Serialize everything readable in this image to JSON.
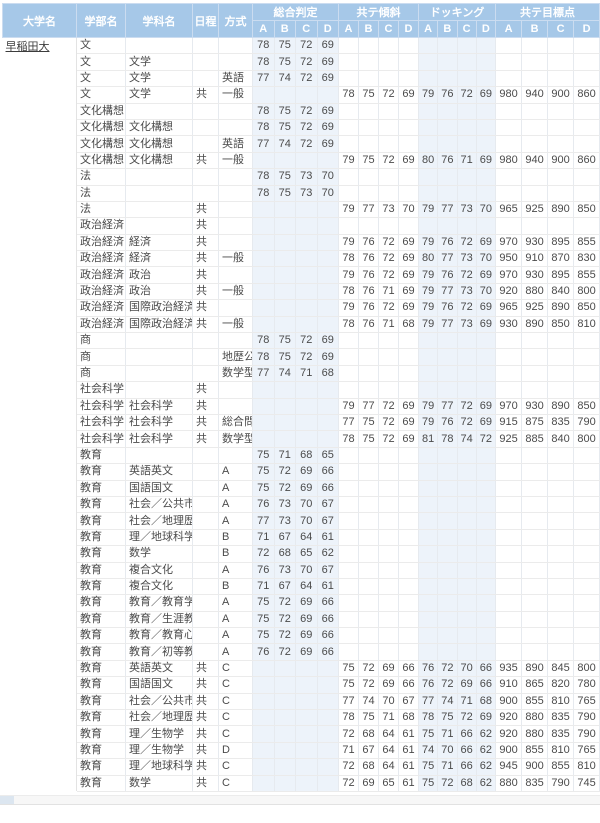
{
  "colors": {
    "header_bg": "#a6c8e8",
    "column_tint": "#edf3fa",
    "header_text": "#ffffff"
  },
  "table": {
    "university": "早稲田大",
    "columns": [
      {
        "key": "university",
        "label": "大学名"
      },
      {
        "key": "faculty",
        "label": "学部名"
      },
      {
        "key": "department",
        "label": "学科名"
      },
      {
        "key": "schedule",
        "label": "日程"
      },
      {
        "key": "method",
        "label": "方式"
      }
    ],
    "groups": [
      {
        "key": "sogo",
        "label": "総合判定",
        "sub": [
          "A",
          "B",
          "C",
          "D"
        ]
      },
      {
        "key": "keisha",
        "label": "共テ傾斜",
        "sub": [
          "A",
          "B",
          "C",
          "D"
        ]
      },
      {
        "key": "docking",
        "label": "ドッキング",
        "sub": [
          "A",
          "B",
          "C",
          "D"
        ]
      },
      {
        "key": "mokuhyo",
        "label": "共テ目標点",
        "sub": [
          "A",
          "B",
          "C",
          "D"
        ]
      }
    ],
    "tinted_groups": [
      "sogo",
      "docking"
    ],
    "rows": [
      {
        "faculty": "文",
        "department": "",
        "schedule": "",
        "method": "",
        "sogo": [
          "78",
          "75",
          "72",
          "69"
        ],
        "keisha": [],
        "docking": [],
        "mokuhyo": []
      },
      {
        "faculty": "文",
        "department": "文学",
        "schedule": "",
        "method": "",
        "sogo": [
          "78",
          "75",
          "72",
          "69"
        ],
        "keisha": [],
        "docking": [],
        "mokuhyo": []
      },
      {
        "faculty": "文",
        "department": "文学",
        "schedule": "",
        "method": "英語",
        "sogo": [
          "77",
          "74",
          "72",
          "69"
        ],
        "keisha": [],
        "docking": [],
        "mokuhyo": []
      },
      {
        "faculty": "文",
        "department": "文学",
        "schedule": "共",
        "method": "一般",
        "sogo": [],
        "keisha": [
          "78",
          "75",
          "72",
          "69"
        ],
        "docking": [
          "79",
          "76",
          "72",
          "69"
        ],
        "mokuhyo": [
          "980",
          "940",
          "900",
          "860"
        ]
      },
      {
        "faculty": "文化構想",
        "department": "",
        "schedule": "",
        "method": "",
        "sogo": [
          "78",
          "75",
          "72",
          "69"
        ],
        "keisha": [],
        "docking": [],
        "mokuhyo": []
      },
      {
        "faculty": "文化構想",
        "department": "文化構想",
        "schedule": "",
        "method": "",
        "sogo": [
          "78",
          "75",
          "72",
          "69"
        ],
        "keisha": [],
        "docking": [],
        "mokuhyo": []
      },
      {
        "faculty": "文化構想",
        "department": "文化構想",
        "schedule": "",
        "method": "英語",
        "sogo": [
          "77",
          "74",
          "72",
          "69"
        ],
        "keisha": [],
        "docking": [],
        "mokuhyo": []
      },
      {
        "faculty": "文化構想",
        "department": "文化構想",
        "schedule": "共",
        "method": "一般",
        "sogo": [],
        "keisha": [
          "79",
          "75",
          "72",
          "69"
        ],
        "docking": [
          "80",
          "76",
          "71",
          "69"
        ],
        "mokuhyo": [
          "980",
          "940",
          "900",
          "860"
        ]
      },
      {
        "faculty": "法",
        "department": "",
        "schedule": "",
        "method": "",
        "sogo": [
          "78",
          "75",
          "73",
          "70"
        ],
        "keisha": [],
        "docking": [],
        "mokuhyo": []
      },
      {
        "faculty": "法",
        "department": "",
        "schedule": "",
        "method": "",
        "sogo": [
          "78",
          "75",
          "73",
          "70"
        ],
        "keisha": [],
        "docking": [],
        "mokuhyo": []
      },
      {
        "faculty": "法",
        "department": "",
        "schedule": "共",
        "method": "",
        "sogo": [],
        "keisha": [
          "79",
          "77",
          "73",
          "70"
        ],
        "docking": [
          "79",
          "77",
          "73",
          "70"
        ],
        "mokuhyo": [
          "965",
          "925",
          "890",
          "850"
        ]
      },
      {
        "faculty": "政治経済",
        "department": "",
        "schedule": "共",
        "method": "",
        "sogo": [],
        "keisha": [],
        "docking": [],
        "mokuhyo": []
      },
      {
        "faculty": "政治経済",
        "department": "経済",
        "schedule": "共",
        "method": "",
        "sogo": [],
        "keisha": [
          "79",
          "76",
          "72",
          "69"
        ],
        "docking": [
          "79",
          "76",
          "72",
          "69"
        ],
        "mokuhyo": [
          "970",
          "930",
          "895",
          "855"
        ]
      },
      {
        "faculty": "政治経済",
        "department": "経済",
        "schedule": "共",
        "method": "一般",
        "sogo": [],
        "keisha": [
          "78",
          "76",
          "72",
          "69"
        ],
        "docking": [
          "80",
          "77",
          "73",
          "70"
        ],
        "mokuhyo": [
          "950",
          "910",
          "870",
          "830"
        ]
      },
      {
        "faculty": "政治経済",
        "department": "政治",
        "schedule": "共",
        "method": "",
        "sogo": [],
        "keisha": [
          "79",
          "76",
          "72",
          "69"
        ],
        "docking": [
          "79",
          "76",
          "72",
          "69"
        ],
        "mokuhyo": [
          "970",
          "930",
          "895",
          "855"
        ]
      },
      {
        "faculty": "政治経済",
        "department": "政治",
        "schedule": "共",
        "method": "一般",
        "sogo": [],
        "keisha": [
          "78",
          "76",
          "71",
          "69"
        ],
        "docking": [
          "79",
          "77",
          "73",
          "70"
        ],
        "mokuhyo": [
          "920",
          "880",
          "840",
          "800"
        ]
      },
      {
        "faculty": "政治経済",
        "department": "国際政治経済",
        "schedule": "共",
        "method": "",
        "sogo": [],
        "keisha": [
          "79",
          "76",
          "72",
          "69"
        ],
        "docking": [
          "79",
          "76",
          "72",
          "69"
        ],
        "mokuhyo": [
          "965",
          "925",
          "890",
          "850"
        ]
      },
      {
        "faculty": "政治経済",
        "department": "国際政治経済",
        "schedule": "共",
        "method": "一般",
        "sogo": [],
        "keisha": [
          "78",
          "76",
          "71",
          "68"
        ],
        "docking": [
          "79",
          "77",
          "73",
          "69"
        ],
        "mokuhyo": [
          "930",
          "890",
          "850",
          "810"
        ]
      },
      {
        "faculty": "商",
        "department": "",
        "schedule": "",
        "method": "",
        "sogo": [
          "78",
          "75",
          "72",
          "69"
        ],
        "keisha": [],
        "docking": [],
        "mokuhyo": []
      },
      {
        "faculty": "商",
        "department": "",
        "schedule": "",
        "method": "地歴公",
        "sogo": [
          "78",
          "75",
          "72",
          "69"
        ],
        "keisha": [],
        "docking": [],
        "mokuhyo": []
      },
      {
        "faculty": "商",
        "department": "",
        "schedule": "",
        "method": "数学型",
        "sogo": [
          "77",
          "74",
          "71",
          "68"
        ],
        "keisha": [],
        "docking": [],
        "mokuhyo": []
      },
      {
        "faculty": "社会科学",
        "department": "",
        "schedule": "共",
        "method": "",
        "sogo": [],
        "keisha": [],
        "docking": [],
        "mokuhyo": []
      },
      {
        "faculty": "社会科学",
        "department": "社会科学",
        "schedule": "共",
        "method": "",
        "sogo": [],
        "keisha": [
          "79",
          "77",
          "72",
          "69"
        ],
        "docking": [
          "79",
          "77",
          "72",
          "69"
        ],
        "mokuhyo": [
          "970",
          "930",
          "890",
          "850"
        ]
      },
      {
        "faculty": "社会科学",
        "department": "社会科学",
        "schedule": "共",
        "method": "総合問",
        "sogo": [],
        "keisha": [
          "77",
          "75",
          "72",
          "69"
        ],
        "docking": [
          "79",
          "76",
          "72",
          "69"
        ],
        "mokuhyo": [
          "915",
          "875",
          "835",
          "790"
        ]
      },
      {
        "faculty": "社会科学",
        "department": "社会科学",
        "schedule": "共",
        "method": "数学型",
        "sogo": [],
        "keisha": [
          "78",
          "75",
          "72",
          "69"
        ],
        "docking": [
          "81",
          "78",
          "74",
          "72"
        ],
        "mokuhyo": [
          "925",
          "885",
          "840",
          "800"
        ]
      },
      {
        "faculty": "教育",
        "department": "",
        "schedule": "",
        "method": "",
        "sogo": [
          "75",
          "71",
          "68",
          "65"
        ],
        "keisha": [],
        "docking": [],
        "mokuhyo": []
      },
      {
        "faculty": "教育",
        "department": "英語英文",
        "schedule": "",
        "method": "A",
        "sogo": [
          "75",
          "72",
          "69",
          "66"
        ],
        "keisha": [],
        "docking": [],
        "mokuhyo": []
      },
      {
        "faculty": "教育",
        "department": "国語国文",
        "schedule": "",
        "method": "A",
        "sogo": [
          "75",
          "72",
          "69",
          "66"
        ],
        "keisha": [],
        "docking": [],
        "mokuhyo": []
      },
      {
        "faculty": "教育",
        "department": "社会／公共市",
        "schedule": "",
        "method": "A",
        "sogo": [
          "76",
          "73",
          "70",
          "67"
        ],
        "keisha": [],
        "docking": [],
        "mokuhyo": []
      },
      {
        "faculty": "教育",
        "department": "社会／地理歴",
        "schedule": "",
        "method": "A",
        "sogo": [
          "77",
          "73",
          "70",
          "67"
        ],
        "keisha": [],
        "docking": [],
        "mokuhyo": []
      },
      {
        "faculty": "教育",
        "department": "理／地球科学",
        "schedule": "",
        "method": "B",
        "sogo": [
          "71",
          "67",
          "64",
          "61"
        ],
        "keisha": [],
        "docking": [],
        "mokuhyo": []
      },
      {
        "faculty": "教育",
        "department": "数学",
        "schedule": "",
        "method": "B",
        "sogo": [
          "72",
          "68",
          "65",
          "62"
        ],
        "keisha": [],
        "docking": [],
        "mokuhyo": []
      },
      {
        "faculty": "教育",
        "department": "複合文化",
        "schedule": "",
        "method": "A",
        "sogo": [
          "76",
          "73",
          "70",
          "67"
        ],
        "keisha": [],
        "docking": [],
        "mokuhyo": []
      },
      {
        "faculty": "教育",
        "department": "複合文化",
        "schedule": "",
        "method": "B",
        "sogo": [
          "71",
          "67",
          "64",
          "61"
        ],
        "keisha": [],
        "docking": [],
        "mokuhyo": []
      },
      {
        "faculty": "教育",
        "department": "教育／教育学",
        "schedule": "",
        "method": "A",
        "sogo": [
          "75",
          "72",
          "69",
          "66"
        ],
        "keisha": [],
        "docking": [],
        "mokuhyo": []
      },
      {
        "faculty": "教育",
        "department": "教育／生涯教",
        "schedule": "",
        "method": "A",
        "sogo": [
          "75",
          "72",
          "69",
          "66"
        ],
        "keisha": [],
        "docking": [],
        "mokuhyo": []
      },
      {
        "faculty": "教育",
        "department": "教育／教育心",
        "schedule": "",
        "method": "A",
        "sogo": [
          "75",
          "72",
          "69",
          "66"
        ],
        "keisha": [],
        "docking": [],
        "mokuhyo": []
      },
      {
        "faculty": "教育",
        "department": "教育／初等教",
        "schedule": "",
        "method": "A",
        "sogo": [
          "76",
          "72",
          "69",
          "66"
        ],
        "keisha": [],
        "docking": [],
        "mokuhyo": []
      },
      {
        "faculty": "教育",
        "department": "英語英文",
        "schedule": "共",
        "method": "C",
        "sogo": [],
        "keisha": [
          "75",
          "72",
          "69",
          "66"
        ],
        "docking": [
          "76",
          "72",
          "70",
          "66"
        ],
        "mokuhyo": [
          "935",
          "890",
          "845",
          "800"
        ]
      },
      {
        "faculty": "教育",
        "department": "国語国文",
        "schedule": "共",
        "method": "C",
        "sogo": [],
        "keisha": [
          "75",
          "72",
          "69",
          "66"
        ],
        "docking": [
          "76",
          "72",
          "69",
          "66"
        ],
        "mokuhyo": [
          "910",
          "865",
          "820",
          "780"
        ]
      },
      {
        "faculty": "教育",
        "department": "社会／公共市",
        "schedule": "共",
        "method": "C",
        "sogo": [],
        "keisha": [
          "77",
          "74",
          "70",
          "67"
        ],
        "docking": [
          "77",
          "74",
          "71",
          "68"
        ],
        "mokuhyo": [
          "900",
          "855",
          "810",
          "765"
        ]
      },
      {
        "faculty": "教育",
        "department": "社会／地理歴",
        "schedule": "共",
        "method": "C",
        "sogo": [],
        "keisha": [
          "78",
          "75",
          "71",
          "68"
        ],
        "docking": [
          "78",
          "75",
          "72",
          "69"
        ],
        "mokuhyo": [
          "920",
          "880",
          "835",
          "790"
        ]
      },
      {
        "faculty": "教育",
        "department": "理／生物学",
        "schedule": "共",
        "method": "C",
        "sogo": [],
        "keisha": [
          "72",
          "68",
          "64",
          "61"
        ],
        "docking": [
          "75",
          "71",
          "66",
          "62"
        ],
        "mokuhyo": [
          "920",
          "880",
          "835",
          "790"
        ]
      },
      {
        "faculty": "教育",
        "department": "理／生物学",
        "schedule": "共",
        "method": "D",
        "sogo": [],
        "keisha": [
          "71",
          "67",
          "64",
          "61"
        ],
        "docking": [
          "74",
          "70",
          "66",
          "62"
        ],
        "mokuhyo": [
          "900",
          "855",
          "810",
          "765"
        ]
      },
      {
        "faculty": "教育",
        "department": "理／地球科学",
        "schedule": "共",
        "method": "C",
        "sogo": [],
        "keisha": [
          "72",
          "68",
          "64",
          "61"
        ],
        "docking": [
          "75",
          "71",
          "66",
          "62"
        ],
        "mokuhyo": [
          "945",
          "900",
          "855",
          "810"
        ]
      },
      {
        "faculty": "教育",
        "department": "数学",
        "schedule": "共",
        "method": "C",
        "sogo": [],
        "keisha": [
          "72",
          "69",
          "65",
          "61"
        ],
        "docking": [
          "75",
          "72",
          "68",
          "62"
        ],
        "mokuhyo": [
          "880",
          "835",
          "790",
          "745"
        ]
      }
    ]
  }
}
